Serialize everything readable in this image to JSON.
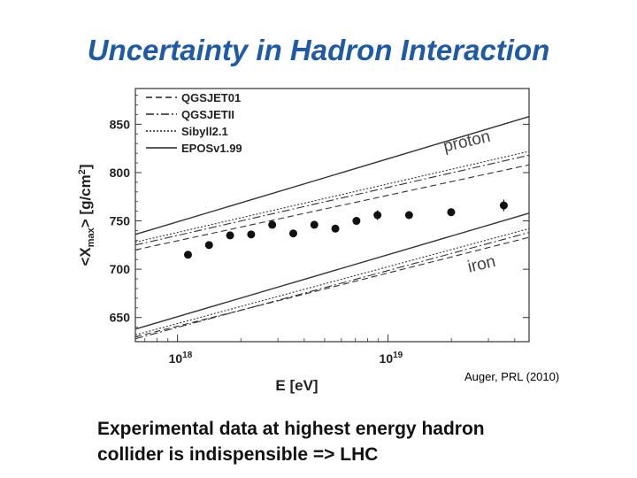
{
  "slide": {
    "title": "Uncertainty in Hadron Interaction",
    "caption": "Auger, PRL (2010)",
    "statement": [
      "Experimental data at highest energy hadron",
      "collider is indispensible => LHC"
    ]
  },
  "chart_data": {
    "type": "line",
    "title": "",
    "xlabel": "E [eV]",
    "ylabel": "<Xmax> [g/cm2]",
    "ylabel_parts": [
      "<X",
      "max",
      "> [g/cm",
      "2",
      "]"
    ],
    "x_scale": "log",
    "xlim_log10": [
      17.8,
      19.67
    ],
    "ylim": [
      625,
      887
    ],
    "y_ticks": [
      650,
      700,
      750,
      800,
      850
    ],
    "y_tick_labels": [
      "650",
      "700",
      "750",
      "800",
      "850"
    ],
    "x_ticks_log10": [
      18,
      19
    ],
    "x_tick_labels": [
      {
        "base": "10",
        "exp": "18"
      },
      {
        "base": "10",
        "exp": "19"
      }
    ],
    "legend": {
      "position": "top-left",
      "entries": [
        {
          "label": "QGSJET01",
          "style": "dashed"
        },
        {
          "label": "QGSJETII",
          "style": "dashdot"
        },
        {
          "label": "Sibyll2.1",
          "style": "dotted"
        },
        {
          "label": "EPOSv1.99",
          "style": "solid"
        }
      ]
    },
    "annotations": [
      {
        "text": "proton",
        "x_log10": 19.38,
        "y": 827
      },
      {
        "text": "iron",
        "x_log10": 19.45,
        "y": 700
      }
    ],
    "series": [
      {
        "name": "QGSJET01",
        "style": "dashed",
        "group": "proton",
        "points": [
          {
            "x_log10": 17.8,
            "y": 720
          },
          {
            "x_log10": 19.67,
            "y": 808
          }
        ]
      },
      {
        "name": "QGSJETII",
        "style": "dashdot",
        "group": "proton",
        "points": [
          {
            "x_log10": 17.8,
            "y": 725
          },
          {
            "x_log10": 19.67,
            "y": 818
          }
        ]
      },
      {
        "name": "Sibyll2.1",
        "style": "dotted",
        "group": "proton",
        "points": [
          {
            "x_log10": 17.8,
            "y": 728
          },
          {
            "x_log10": 19.67,
            "y": 822
          }
        ]
      },
      {
        "name": "EPOSv1.99",
        "style": "solid",
        "group": "proton",
        "points": [
          {
            "x_log10": 17.8,
            "y": 736
          },
          {
            "x_log10": 19.67,
            "y": 858
          }
        ]
      },
      {
        "name": "QGSJET01",
        "style": "dashed",
        "group": "iron",
        "points": [
          {
            "x_log10": 17.8,
            "y": 630
          },
          {
            "x_log10": 19.67,
            "y": 733
          }
        ]
      },
      {
        "name": "QGSJETII",
        "style": "dashdot",
        "group": "iron",
        "points": [
          {
            "x_log10": 17.8,
            "y": 628
          },
          {
            "x_log10": 19.67,
            "y": 738
          }
        ]
      },
      {
        "name": "Sibyll2.1",
        "style": "dotted",
        "group": "iron",
        "points": [
          {
            "x_log10": 17.8,
            "y": 632
          },
          {
            "x_log10": 19.67,
            "y": 742
          }
        ]
      },
      {
        "name": "EPOSv1.99",
        "style": "solid",
        "group": "iron",
        "points": [
          {
            "x_log10": 17.8,
            "y": 638
          },
          {
            "x_log10": 19.67,
            "y": 758
          }
        ]
      }
    ],
    "data_points": [
      {
        "x_log10": 18.05,
        "y": 715,
        "err": 3
      },
      {
        "x_log10": 18.15,
        "y": 725,
        "err": 3
      },
      {
        "x_log10": 18.25,
        "y": 735,
        "err": 3
      },
      {
        "x_log10": 18.35,
        "y": 736,
        "err": 3
      },
      {
        "x_log10": 18.45,
        "y": 746,
        "err": 3
      },
      {
        "x_log10": 18.55,
        "y": 737,
        "err": 3
      },
      {
        "x_log10": 18.65,
        "y": 746,
        "err": 3
      },
      {
        "x_log10": 18.75,
        "y": 742,
        "err": 3
      },
      {
        "x_log10": 18.85,
        "y": 750,
        "err": 4
      },
      {
        "x_log10": 18.95,
        "y": 756,
        "err": 5
      },
      {
        "x_log10": 19.1,
        "y": 756,
        "err": 4
      },
      {
        "x_log10": 19.3,
        "y": 759,
        "err": 4
      },
      {
        "x_log10": 19.55,
        "y": 766,
        "err": 6
      }
    ]
  }
}
